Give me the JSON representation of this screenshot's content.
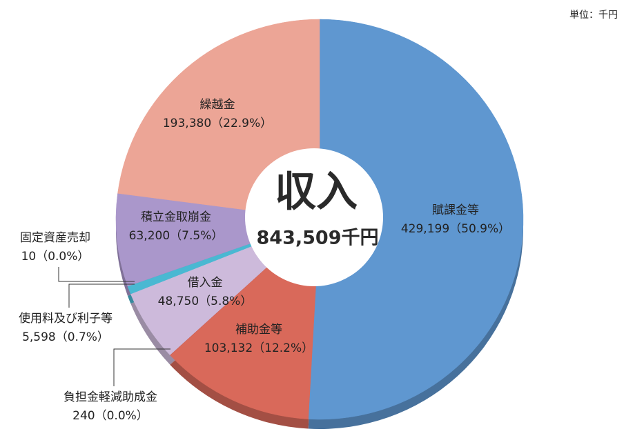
{
  "chart_data": {
    "type": "pie",
    "title": "収入",
    "total_label": "843,509千円",
    "unit": "単位：千円",
    "categories": [
      "賦課金等",
      "補助金等",
      "負担金軽減助成金",
      "借入金",
      "使用料及び利子等",
      "固定資産売却",
      "積立金取崩金",
      "繰越金"
    ],
    "values": [
      429199,
      103132,
      240,
      48750,
      5598,
      10,
      63200,
      193380
    ],
    "value_labels": [
      "429,199（50.9%）",
      "103,132（12.2%）",
      "240（0.0%）",
      "48,750（5.8%）",
      "5,598（0.7%）",
      "10（0.0%）",
      "63,200（7.5%）",
      "193,380（22.9%）"
    ],
    "colors": [
      "#5f97d0",
      "#d9695a",
      "#c85a4c",
      "#cdbadb",
      "#4ab8d2",
      "#8f7fb8",
      "#aa97cb",
      "#eca596"
    ]
  }
}
